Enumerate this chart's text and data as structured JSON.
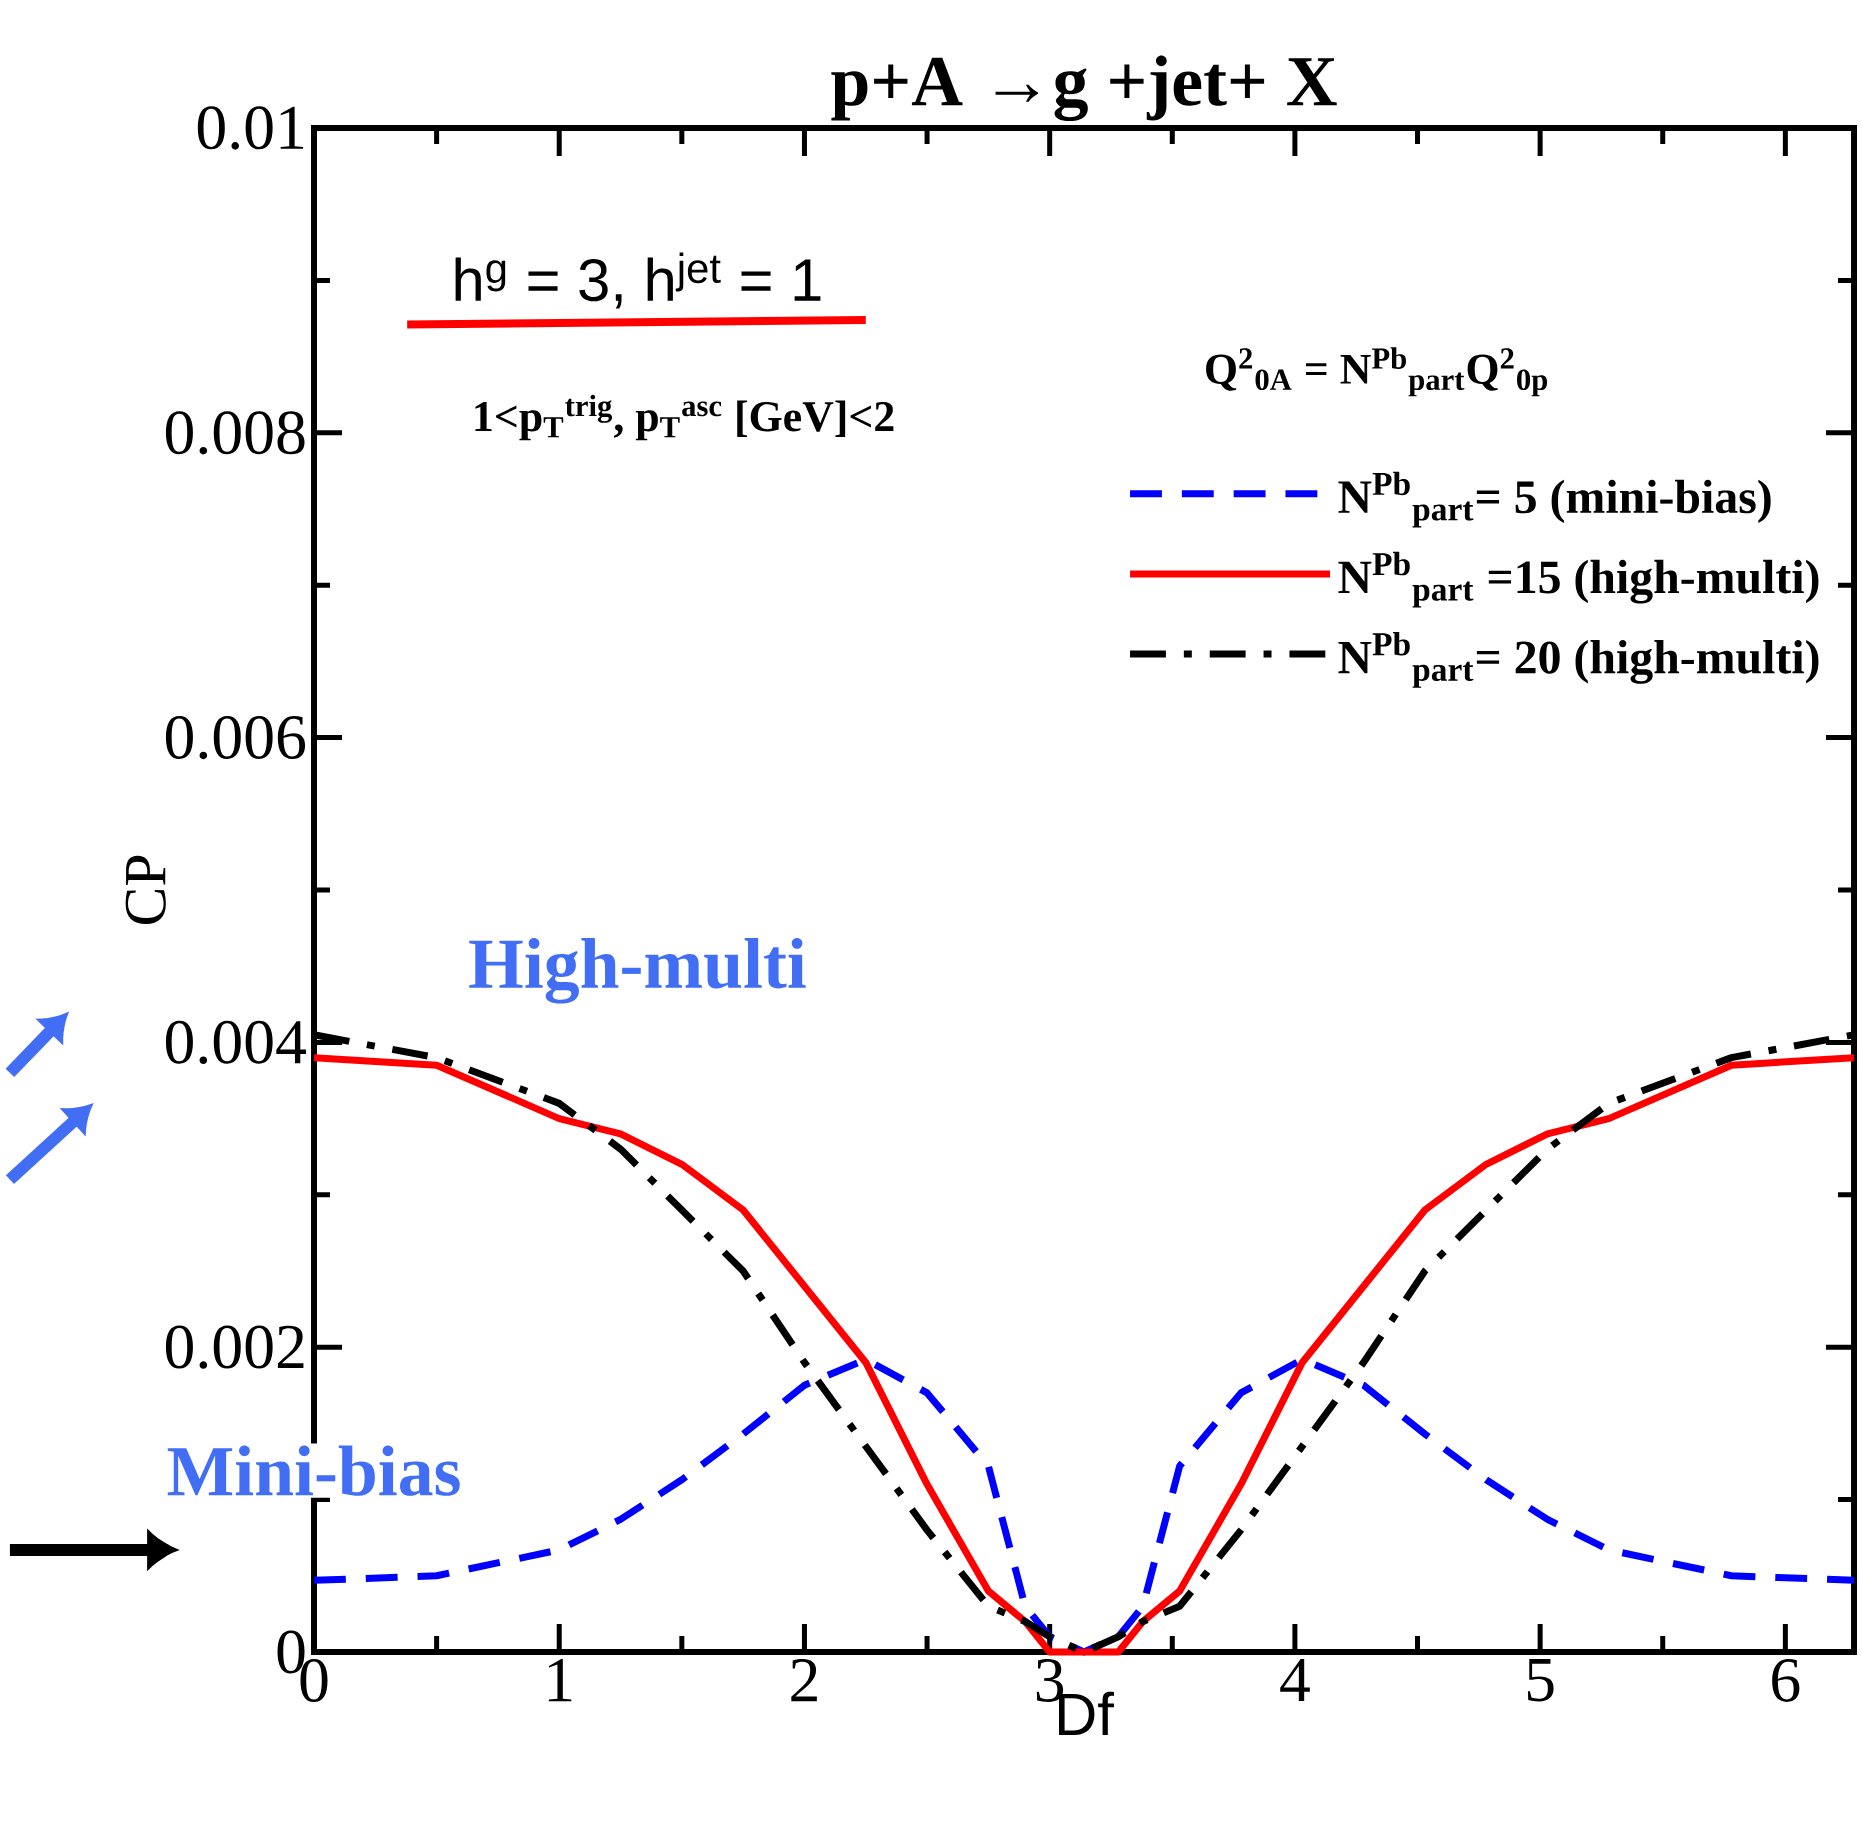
{
  "chart_data": {
    "type": "line",
    "title": "p+A →g +jet+ X",
    "xlabel": "Df",
    "ylabel": "CP",
    "x": [
      0,
      0.5,
      1,
      1.25,
      1.5,
      1.75,
      2,
      2.25,
      2.5,
      2.75,
      2.9,
      3,
      3.14,
      3.28,
      3.38,
      3.53,
      3.78,
      4.03,
      4.28,
      4.53,
      4.78,
      5.03,
      5.28,
      5.78,
      6.28
    ],
    "series": [
      {
        "name": "N$^{Pb}$$_{part}$= 5 (mini-bias)",
        "color": "#0000ff",
        "line_style": "dashed",
        "values": [
          0.00047,
          0.0005,
          0.00067,
          0.00087,
          0.00113,
          0.00143,
          0.00175,
          0.00192,
          0.0017,
          0.00122,
          0.0003,
          0.0001,
          0,
          0.0001,
          0.0003,
          0.00122,
          0.0017,
          0.00192,
          0.00175,
          0.00143,
          0.00113,
          0.00087,
          0.00067,
          0.0005,
          0.00047
        ]
      },
      {
        "name": "N$^{Pb}$$_{part}$ =15 (high-multi)",
        "color": "#ff0000",
        "line_style": "solid",
        "values": [
          0.0039,
          0.00385,
          0.0035,
          0.0034,
          0.0032,
          0.0029,
          0.0024,
          0.0019,
          0.0011,
          0.0004,
          0.0002,
          0,
          0,
          0,
          0.0002,
          0.0004,
          0.0011,
          0.0019,
          0.0024,
          0.0029,
          0.0032,
          0.0034,
          0.0035,
          0.00385,
          0.0039
        ]
      },
      {
        "name": "N$^{Pb}$$_{part}$= 20 (high-multi)",
        "color": "#000000",
        "line_style": "dashdot",
        "values": [
          0.00405,
          0.0039,
          0.0036,
          0.0033,
          0.0029,
          0.0025,
          0.0019,
          0.00135,
          0.0008,
          0.0003,
          0.0002,
          0.0001,
          0,
          0.0001,
          0.0002,
          0.0003,
          0.0008,
          0.00135,
          0.0019,
          0.0025,
          0.0029,
          0.0033,
          0.0036,
          0.0039,
          0.00405
        ]
      }
    ],
    "xlim": [
      0,
      6.28
    ],
    "ylim": [
      0,
      0.01
    ],
    "xticks": [
      0,
      1,
      2,
      3,
      4,
      5,
      6
    ],
    "yticks": [
      0,
      0.002,
      0.004,
      0.006,
      0.008,
      0.01
    ],
    "legend": "top right",
    "grid": false,
    "marker": "none",
    "annotations": [
      "h$^{g}$ = 3, h$^{jet}$ = 1",
      "1<p$_{T}$$^{trig}$, p$_{T}$$^{asc}$ [GeV]<2",
      "Q$^{2}$$_{0A}$ = N$^{Pb}$$_{part}$Q$^{2}$$_{0p}$",
      "High-multi",
      "Mini-bias"
    ]
  }
}
